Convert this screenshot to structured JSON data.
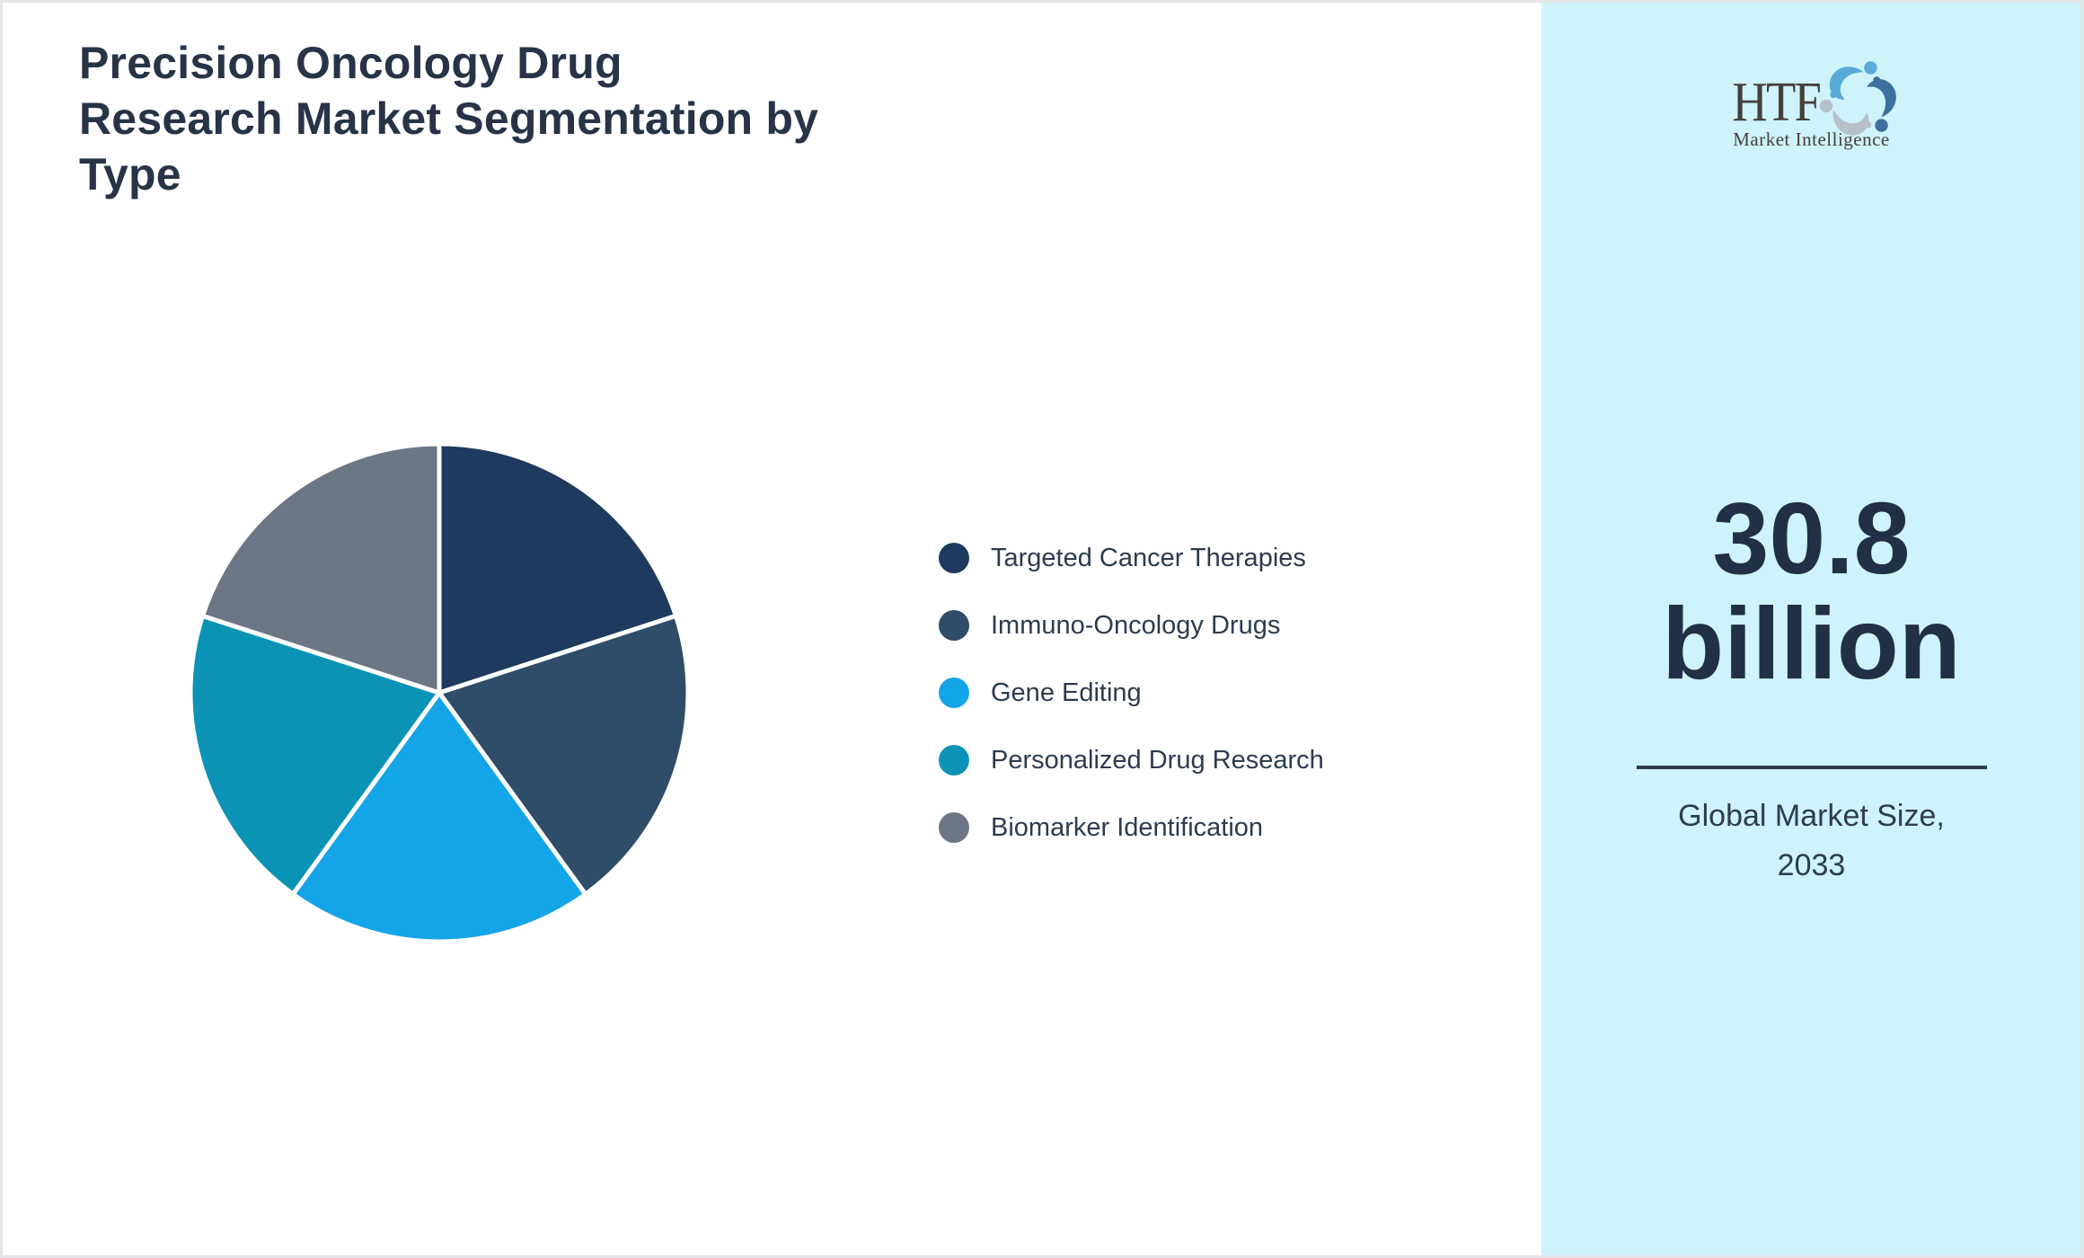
{
  "title": "Precision Oncology Drug Research Market Segmentation by Type",
  "title_lines": [
    "Precision Oncology Drug",
    "Research Market Segmentation by",
    "Type"
  ],
  "chart_data": {
    "type": "pie",
    "title": "Precision Oncology Drug Research Market Segmentation by Type",
    "start_angle_deg": -90,
    "direction": "clockwise",
    "legend_position": "right",
    "note": "five visually equal slices, no data labels shown",
    "series": [
      {
        "name": "Targeted Cancer Therapies",
        "value": 20,
        "color": "#1e3a5e"
      },
      {
        "name": "Immuno-Oncology Drugs",
        "value": 20,
        "color": "#2f4c69"
      },
      {
        "name": "Gene Editing",
        "value": 20,
        "color": "#14a5e8"
      },
      {
        "name": "Personalized Drug Research",
        "value": 20,
        "color": "#0a93b5"
      },
      {
        "name": "Biomarker Identification",
        "value": 20,
        "color": "#6d7684"
      }
    ]
  },
  "sidebar": {
    "background": "#cef3fa",
    "logo": {
      "text": "HTF",
      "subtext": "Market Intelligence",
      "icon": "three-swirling-figures-icon",
      "icon_colors": [
        "#58aad8",
        "#3e709f",
        "#b6c1c9"
      ]
    },
    "market_size": {
      "value": "30.8 billion",
      "caption": "Global Market Size, 2033"
    }
  },
  "colors": {
    "page_border": "#e4e6e9",
    "title_text": "#273447",
    "legend_text": "#2d3b4f",
    "divider": "#2c3a4f",
    "market_size_text": "#213047"
  }
}
